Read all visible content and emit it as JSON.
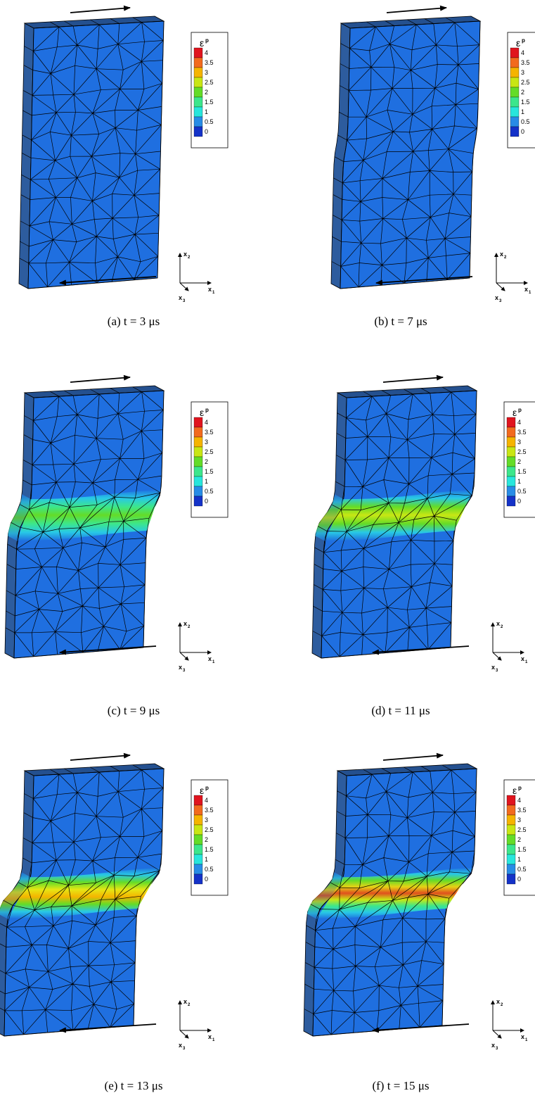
{
  "panels": [
    {
      "caption": "(a) t = 3 μs"
    },
    {
      "caption": "(b) t = 7 μs"
    },
    {
      "caption": "(c) t = 9 μs"
    },
    {
      "caption": "(d) t = 11 μs"
    },
    {
      "caption": "(e) t = 13 μs"
    },
    {
      "caption": "(f) t = 15 μs"
    }
  ],
  "legend": {
    "title": "ε",
    "superscript": "p",
    "labels": [
      "4",
      "3.5",
      "3",
      "2.5",
      "2",
      "1.5",
      "1",
      "0.5",
      "0"
    ]
  },
  "axes": {
    "symbol": "x",
    "subscripts": [
      "1",
      "2",
      "3"
    ]
  }
}
